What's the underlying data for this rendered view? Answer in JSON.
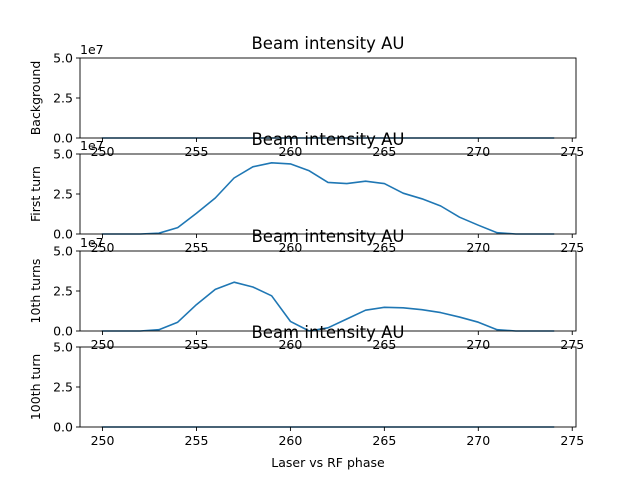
{
  "chart_data": [
    {
      "type": "line",
      "title": "Beam intensity AU",
      "ylabel": "Background",
      "xlabel": "",
      "y_offset_text": "1e7",
      "ylim": [
        0,
        5
      ],
      "xlim": [
        248.8,
        275.2
      ],
      "xticks": [
        "250",
        "255",
        "260",
        "265",
        "270",
        "275"
      ],
      "yticks": [
        "0.0",
        "2.5",
        "5.0"
      ],
      "series": [
        {
          "color": "#1f77b4",
          "x": [
            250,
            251,
            252,
            253,
            254,
            255,
            256,
            257,
            258,
            259,
            260,
            261,
            262,
            263,
            264,
            265,
            266,
            267,
            268,
            269,
            270,
            271,
            272,
            273,
            274
          ],
          "y": [
            0,
            0,
            0,
            0,
            0,
            0,
            0,
            0,
            0,
            0,
            0,
            0,
            0,
            0,
            0,
            0,
            0,
            0,
            0,
            0,
            0,
            0,
            0,
            0,
            0
          ]
        }
      ]
    },
    {
      "type": "line",
      "title": "Beam intensity AU",
      "ylabel": "First turn",
      "xlabel": "",
      "y_offset_text": "1e7",
      "ylim": [
        0,
        5
      ],
      "xlim": [
        248.8,
        275.2
      ],
      "xticks": [
        "250",
        "255",
        "260",
        "265",
        "270",
        "275"
      ],
      "yticks": [
        "0.0",
        "2.5",
        "5.0"
      ],
      "series": [
        {
          "color": "#1f77b4",
          "x": [
            250,
            251,
            252,
            253,
            254,
            255,
            256,
            257,
            258,
            259,
            260,
            261,
            262,
            263,
            264,
            265,
            266,
            267,
            268,
            269,
            270,
            271,
            272,
            273,
            274
          ],
          "y": [
            0,
            0,
            0,
            0.05,
            0.4,
            1.3,
            2.25,
            3.5,
            4.2,
            4.45,
            4.38,
            3.95,
            3.22,
            3.15,
            3.3,
            3.15,
            2.55,
            2.2,
            1.75,
            1.05,
            0.55,
            0.08,
            0,
            0,
            0
          ]
        }
      ]
    },
    {
      "type": "line",
      "title": "Beam intensity AU",
      "ylabel": "10th turns",
      "xlabel": "",
      "y_offset_text": "1e7",
      "ylim": [
        0,
        5
      ],
      "xlim": [
        248.8,
        275.2
      ],
      "xticks": [
        "250",
        "255",
        "260",
        "265",
        "270",
        "275"
      ],
      "yticks": [
        "0.0",
        "2.5",
        "5.0"
      ],
      "series": [
        {
          "color": "#1f77b4",
          "x": [
            250,
            251,
            252,
            253,
            254,
            255,
            256,
            257,
            258,
            259,
            260,
            261,
            262,
            263,
            264,
            265,
            266,
            267,
            268,
            269,
            270,
            271,
            272,
            273,
            274
          ],
          "y": [
            0,
            0,
            0,
            0.08,
            0.55,
            1.65,
            2.6,
            3.05,
            2.75,
            2.2,
            0.6,
            0,
            0.2,
            0.75,
            1.3,
            1.48,
            1.45,
            1.33,
            1.15,
            0.87,
            0.55,
            0.08,
            0,
            0,
            0
          ]
        }
      ]
    },
    {
      "type": "line",
      "title": "Beam intensity AU",
      "ylabel": "100th turn",
      "xlabel": "Laser vs RF phase",
      "y_offset_text": "",
      "ylim": [
        0,
        5
      ],
      "xlim": [
        248.8,
        275.2
      ],
      "xticks": [
        "250",
        "255",
        "260",
        "265",
        "270",
        "275"
      ],
      "yticks": [
        "0.0",
        "2.5",
        "5.0"
      ],
      "series": [
        {
          "color": "#1f77b4",
          "x": [
            250,
            251,
            252,
            253,
            254,
            255,
            256,
            257,
            258,
            259,
            260,
            261,
            262,
            263,
            264,
            265,
            266,
            267,
            268,
            269,
            270,
            271,
            272,
            273,
            274
          ],
          "y": [
            0,
            0,
            0,
            0,
            0,
            0,
            0,
            0,
            0,
            0,
            0,
            0,
            0,
            0,
            0,
            0,
            0,
            0,
            0,
            0,
            0,
            0,
            0,
            0,
            0
          ]
        }
      ]
    }
  ]
}
